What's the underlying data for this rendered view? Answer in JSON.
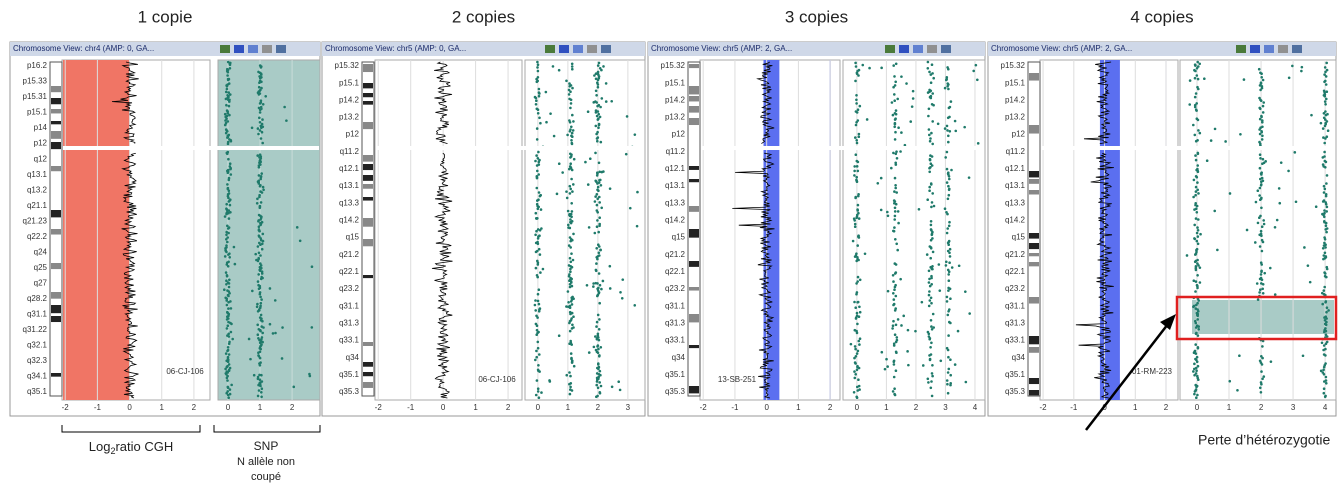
{
  "panels": [
    {
      "heading": "1 copie",
      "title": "Chromosome View: chr4 (AMP: 0, GA...",
      "bands": [
        "p16.2",
        "p15.33",
        "p15.31",
        "p15.1",
        "p14",
        "p12",
        "q12",
        "q13.1",
        "q13.2",
        "q21.1",
        "q21.23",
        "q22.2",
        "q24",
        "q25",
        "q27",
        "q28.2",
        "q31.1",
        "q31.22",
        "q32.1",
        "q32.3",
        "q34.1",
        "q35.1"
      ],
      "cgh_ticks": [
        -2,
        -1,
        0,
        1,
        2
      ],
      "snp_ticks": [
        0,
        1,
        2
      ],
      "sample": "06-CJ-106"
    },
    {
      "heading": "2 copies",
      "title": "Chromosome View: chr5 (AMP: 0, GA...",
      "bands": [
        "p15.32",
        "p15.1",
        "p14.2",
        "p13.2",
        "p12",
        "q11.2",
        "q12.1",
        "q13.1",
        "q13.3",
        "q14.2",
        "q15",
        "q21.2",
        "q22.1",
        "q23.2",
        "q31.1",
        "q31.3",
        "q33.1",
        "q34",
        "q35.1",
        "q35.3"
      ],
      "cgh_ticks": [
        -2,
        -1,
        0,
        1,
        2
      ],
      "snp_ticks": [
        0,
        1,
        2,
        3
      ],
      "sample": "06-CJ-106"
    },
    {
      "heading": "3 copies",
      "title": "Chromosome View: chr5 (AMP: 2, GA...",
      "bands": [
        "p15.32",
        "p15.1",
        "p14.2",
        "p13.2",
        "p12",
        "q11.2",
        "q12.1",
        "q13.1",
        "q13.3",
        "q14.2",
        "q15",
        "q21.2",
        "q22.1",
        "q23.2",
        "q31.1",
        "q31.3",
        "q33.1",
        "q34",
        "q35.1",
        "q35.3"
      ],
      "cgh_ticks": [
        -2,
        -1,
        0,
        1,
        2
      ],
      "snp_ticks": [
        0,
        1,
        2,
        3,
        4
      ],
      "sample": "13-SB-251"
    },
    {
      "heading": "4 copies",
      "title": "Chromosome View: chr5 (AMP: 2, GA...",
      "bands": [
        "p15.32",
        "p15.1",
        "p14.2",
        "p13.2",
        "p12",
        "q11.2",
        "q12.1",
        "q13.1",
        "q13.3",
        "q14.2",
        "q15",
        "q21.2",
        "q22.1",
        "q23.2",
        "q31.1",
        "q31.3",
        "q33.1",
        "q34",
        "q35.1",
        "q35.3"
      ],
      "cgh_ticks": [
        -2,
        -1,
        0,
        1,
        2
      ],
      "snp_ticks": [
        0,
        1,
        2,
        3,
        4
      ],
      "sample": "01-RM-223"
    }
  ],
  "cgh_label": {
    "before": "Log",
    "sub": "2",
    "after": "ratio CGH"
  },
  "snp_label": [
    "SNP",
    "N allèle non",
    "coupé"
  ],
  "loh_label": "Perte d’hétérozygotie"
}
